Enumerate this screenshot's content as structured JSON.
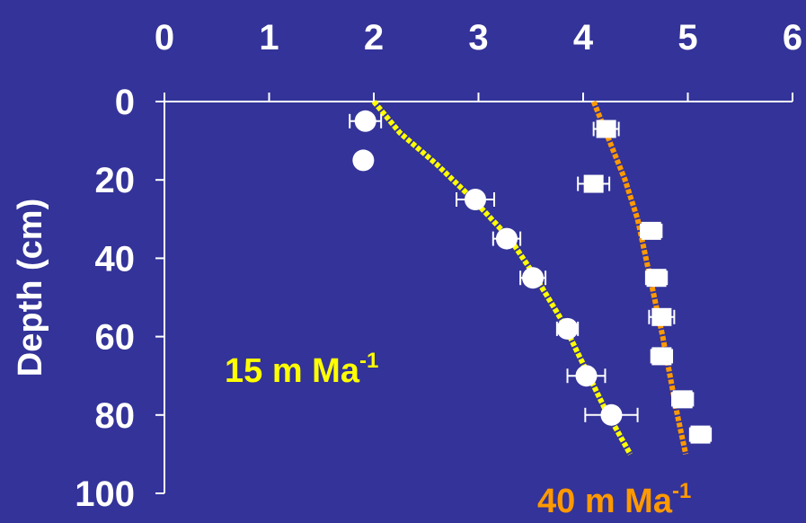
{
  "chart_data": {
    "type": "scatter",
    "title": "",
    "xlabel": "",
    "ylabel": "Depth (cm)",
    "xlim": [
      0,
      6
    ],
    "ylim": [
      100,
      0
    ],
    "x_axis_position": "top",
    "y_inverted": true,
    "grid": false,
    "x_ticks": [
      "0",
      "1",
      "2",
      "3",
      "4",
      "5",
      "6"
    ],
    "y_ticks": [
      "0",
      "20",
      "40",
      "60",
      "80",
      "100"
    ],
    "colors": {
      "background": "#333399",
      "axis": "#ffffff",
      "markers": "#ffffff",
      "fit_15": "#ffff00",
      "fit_40": "#ff9900"
    },
    "series": [
      {
        "marker": "circle",
        "points": [
          {
            "x": 1.92,
            "y": 5,
            "xerr": 0.15
          },
          {
            "x": 1.9,
            "y": 15,
            "xerr": 0
          },
          {
            "x": 2.97,
            "y": 25,
            "xerr": 0.18
          },
          {
            "x": 3.27,
            "y": 35,
            "xerr": 0.13
          },
          {
            "x": 3.52,
            "y": 45,
            "xerr": 0.12
          },
          {
            "x": 3.85,
            "y": 58,
            "xerr": 0.1
          },
          {
            "x": 4.03,
            "y": 70,
            "xerr": 0.18
          },
          {
            "x": 4.27,
            "y": 80,
            "xerr": 0.25
          }
        ]
      },
      {
        "marker": "square",
        "points": [
          {
            "x": 4.22,
            "y": 7,
            "xerr": 0.12
          },
          {
            "x": 4.1,
            "y": 21,
            "xerr": 0.15
          },
          {
            "x": 4.65,
            "y": 33,
            "xerr": 0.1
          },
          {
            "x": 4.7,
            "y": 45,
            "xerr": 0.1
          },
          {
            "x": 4.75,
            "y": 55,
            "xerr": 0.12
          },
          {
            "x": 4.75,
            "y": 65,
            "xerr": 0.1
          },
          {
            "x": 4.95,
            "y": 76,
            "xerr": 0.1
          },
          {
            "x": 5.12,
            "y": 85,
            "xerr": 0.1
          }
        ]
      }
    ],
    "fit_lines": [
      {
        "color": "yellow",
        "points": [
          [
            2.0,
            0
          ],
          [
            2.25,
            8
          ],
          [
            2.6,
            16
          ],
          [
            2.95,
            25
          ],
          [
            3.3,
            35
          ],
          [
            3.55,
            45
          ],
          [
            3.8,
            56
          ],
          [
            4.0,
            67
          ],
          [
            4.2,
            78
          ],
          [
            4.45,
            90
          ]
        ]
      },
      {
        "color": "orange",
        "points": [
          [
            4.1,
            0
          ],
          [
            4.25,
            10
          ],
          [
            4.4,
            20
          ],
          [
            4.52,
            30
          ],
          [
            4.6,
            40
          ],
          [
            4.68,
            50
          ],
          [
            4.76,
            60
          ],
          [
            4.83,
            70
          ],
          [
            4.9,
            80
          ],
          [
            4.98,
            90
          ]
        ]
      }
    ],
    "annotations": [
      {
        "main": "15 m Ma",
        "sup": "-1"
      },
      {
        "main": "40 m Ma",
        "sup": "-1"
      }
    ]
  }
}
